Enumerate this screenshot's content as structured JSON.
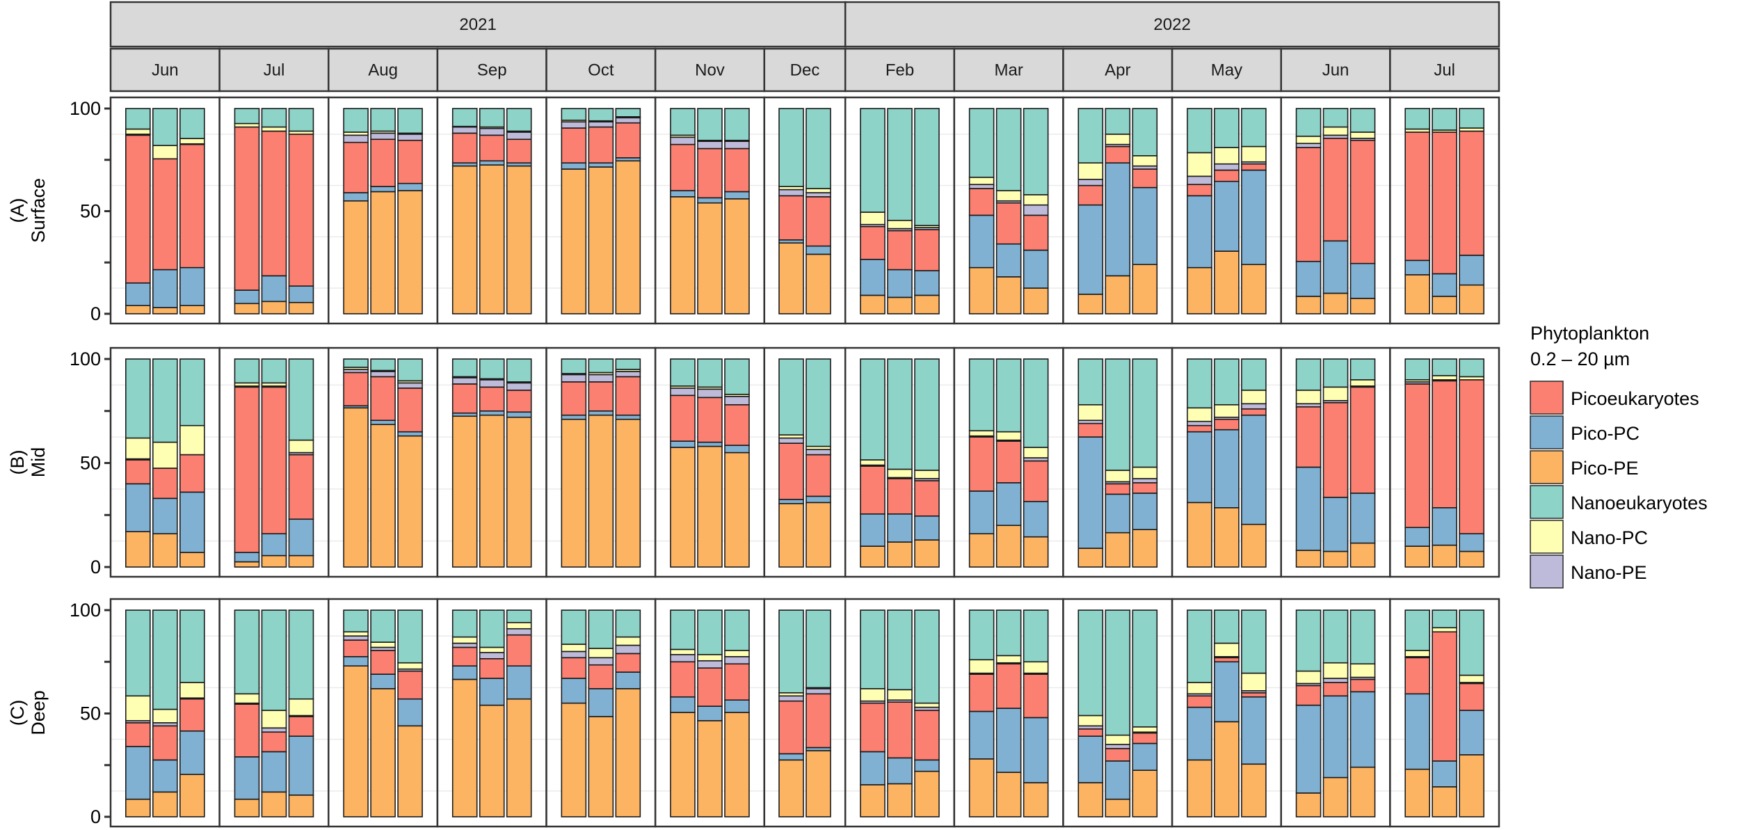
{
  "chart_data": {
    "type": "bar",
    "stacked": true,
    "title": "",
    "xlabel": "",
    "ylabel": "",
    "ylim": [
      0,
      100
    ],
    "yticks": [
      0,
      25,
      50,
      75,
      100
    ],
    "ytick_labels": [
      "0",
      "50",
      "100"
    ],
    "ytick_label_values": [
      0,
      50,
      100
    ],
    "grid": true,
    "legend": {
      "placement": "right",
      "title_lines": [
        "Phytoplankton",
        "0.2 – 20 µm"
      ],
      "items": [
        {
          "name": "Picoeukaryotes",
          "color": "#FB8072"
        },
        {
          "name": "Pico-PC",
          "color": "#80B1D3"
        },
        {
          "name": "Pico-PE",
          "color": "#FDB462"
        },
        {
          "name": "Nanoeukaryotes",
          "color": "#8DD3C7"
        },
        {
          "name": "Nano-PC",
          "color": "#FFFFB3"
        },
        {
          "name": "Nano-PE",
          "color": "#BEBADA"
        }
      ]
    },
    "stack_order": [
      "Pico-PE",
      "Pico-PC",
      "Picoeukaryotes",
      "Nano-PE",
      "Nano-PC",
      "Nanoeukaryotes"
    ],
    "stack_colors": [
      "#FDB462",
      "#80B1D3",
      "#FB8072",
      "#BEBADA",
      "#FFFFB3",
      "#8DD3C7"
    ],
    "years": [
      {
        "label": "2021"
      },
      {
        "label": "2022"
      }
    ],
    "months": [
      {
        "label": "Jun",
        "year": 0
      },
      {
        "label": "Jul",
        "year": 0
      },
      {
        "label": "Aug",
        "year": 0
      },
      {
        "label": "Sep",
        "year": 0
      },
      {
        "label": "Oct",
        "year": 0
      },
      {
        "label": "Nov",
        "year": 0
      },
      {
        "label": "Dec",
        "year": 0
      },
      {
        "label": "Feb",
        "year": 1
      },
      {
        "label": "Mar",
        "year": 1
      },
      {
        "label": "Apr",
        "year": 1
      },
      {
        "label": "May",
        "year": 1
      },
      {
        "label": "Jun",
        "year": 1
      },
      {
        "label": "Jul",
        "year": 1
      }
    ],
    "rows": [
      {
        "letter": "(A)",
        "name": "Surface",
        "bars": [
          [
            [
              4,
              11,
              72,
              0.5,
              2.5,
              10
            ],
            [
              3,
              18.5,
              54,
              0,
              6.5,
              18
            ],
            [
              4,
              18.5,
              60,
              0.3,
              2.6,
              14.6
            ]
          ],
          [
            [
              5,
              6.5,
              79.5,
              0,
              1.7,
              7.3
            ],
            [
              6,
              12.5,
              70.5,
              0,
              2,
              9
            ],
            [
              5.5,
              8,
              74,
              0,
              1.5,
              11
            ]
          ],
          [
            [
              55,
              4,
              24.5,
              3.5,
              1.5,
              11.5
            ],
            [
              59.5,
              2.5,
              23,
              3,
              1,
              11
            ],
            [
              60,
              3.5,
              21,
              3,
              0.5,
              12
            ]
          ],
          [
            [
              72,
              1.5,
              14.5,
              3,
              0.3,
              8.7
            ],
            [
              72.5,
              2,
              12.5,
              3.3,
              0.7,
              9
            ],
            [
              72,
              1.5,
              11.5,
              3.5,
              0.5,
              11
            ]
          ],
          [
            [
              70.5,
              3,
              17,
              3,
              0.8,
              5.7
            ],
            [
              71.5,
              2,
              17.5,
              2.5,
              0.5,
              6
            ],
            [
              74.5,
              1.5,
              17,
              2.5,
              0.5,
              4
            ]
          ],
          [
            [
              57,
              3,
              22.5,
              3.5,
              1,
              13
            ],
            [
              54,
              2.5,
              24,
              3.5,
              0.5,
              15.5
            ],
            [
              56,
              3.5,
              21,
              3.5,
              0.5,
              15.5
            ]
          ],
          [
            [
              34.5,
              1.5,
              21.5,
              3,
              1.5,
              38
            ],
            [
              29,
              4,
              24,
              2,
              2,
              39
            ]
          ],
          [
            [
              9,
              17.5,
              16,
              1,
              6,
              50.5
            ],
            [
              8,
              13.5,
              19,
              1,
              4,
              54.5
            ],
            [
              9,
              12,
              20,
              1,
              1,
              57
            ]
          ],
          [
            [
              22.5,
              25.5,
              13,
              2,
              3.5,
              33.5
            ],
            [
              18,
              16,
              20,
              1,
              5,
              40
            ],
            [
              12.5,
              18.5,
              17,
              5,
              5,
              42
            ]
          ],
          [
            [
              9.5,
              43.5,
              9.5,
              3,
              8,
              26.5
            ],
            [
              18.5,
              55,
              8,
              1,
              5,
              12.5
            ],
            [
              24,
              37.5,
              9,
              1.5,
              5,
              23
            ]
          ],
          [
            [
              22.5,
              35,
              5.5,
              4,
              11.5,
              21.5
            ],
            [
              30.5,
              34,
              5.5,
              3,
              8,
              19
            ],
            [
              24,
              46,
              3,
              1,
              7.5,
              18.5
            ]
          ],
          [
            [
              8.5,
              17,
              55.5,
              2,
              3.5,
              13.5
            ],
            [
              10,
              25.5,
              50,
              1.5,
              4,
              9
            ],
            [
              7.5,
              17,
              60,
              1,
              3,
              11.5
            ]
          ],
          [
            [
              19,
              7,
              62.5,
              0,
              1.5,
              10
            ],
            [
              8.5,
              11,
              69,
              0,
              1,
              10.5
            ],
            [
              14,
              14.5,
              60.5,
              0,
              1.5,
              9.5
            ]
          ]
        ]
      },
      {
        "letter": "(B)",
        "name": "Mid",
        "bars": [
          [
            [
              17,
              23,
              11.5,
              0.5,
              10,
              38
            ],
            [
              16,
              17,
              14.5,
              0,
              12.5,
              40
            ],
            [
              7,
              29,
              18,
              0,
              14,
              32
            ]
          ],
          [
            [
              2.5,
              4.5,
              79.5,
              0.5,
              1.5,
              11.5
            ],
            [
              5.5,
              10.5,
              70.5,
              0.5,
              1.5,
              11.5
            ],
            [
              5.5,
              17.5,
              31,
              1,
              6,
              39
            ]
          ],
          [
            [
              76.5,
              1,
              16,
              1.5,
              1,
              4
            ],
            [
              68.5,
              2,
              21,
              2.5,
              0.5,
              5.5
            ],
            [
              63,
              2,
              21,
              2.5,
              1,
              10.5
            ]
          ],
          [
            [
              72.5,
              1.5,
              14,
              3,
              0.5,
              8.5
            ],
            [
              73,
              2,
              11.5,
              3.5,
              0.5,
              9.5
            ],
            [
              72,
              2.5,
              10.5,
              3.5,
              0.5,
              11
            ]
          ],
          [
            [
              71,
              2,
              16,
              3.5,
              0.5,
              7
            ],
            [
              73,
              2,
              14,
              3.5,
              1,
              6.5
            ],
            [
              71,
              2,
              18.5,
              2.5,
              1,
              5
            ]
          ],
          [
            [
              57.5,
              3,
              22,
              3.5,
              1,
              13
            ],
            [
              58,
              2,
              21.5,
              4,
              1,
              13.5
            ],
            [
              55,
              3.5,
              19.5,
              4,
              1,
              17
            ]
          ],
          [
            [
              30.5,
              2,
              27,
              2.5,
              1.5,
              36.5
            ],
            [
              31,
              3,
              20,
              2.5,
              1.5,
              42
            ]
          ],
          [
            [
              10,
              15.5,
              23,
              0.5,
              2.5,
              48.5
            ],
            [
              12,
              13.5,
              17,
              0.5,
              4,
              53
            ],
            [
              13,
              11.5,
              17,
              1,
              4,
              53.5
            ]
          ],
          [
            [
              16,
              20.5,
              26,
              0.5,
              2.5,
              34.5
            ],
            [
              20,
              20.5,
              20,
              0.5,
              4,
              35
            ],
            [
              14.5,
              17,
              19.5,
              1.5,
              5,
              42.5
            ]
          ],
          [
            [
              9,
              53.5,
              6.5,
              1.5,
              7.5,
              22
            ],
            [
              16.5,
              18.5,
              5,
              1,
              5.5,
              53.5
            ],
            [
              18,
              17.5,
              5,
              2,
              5.5,
              52
            ]
          ],
          [
            [
              31,
              34,
              3,
              2,
              6.5,
              23.5
            ],
            [
              28.5,
              37.5,
              5,
              1,
              6,
              22
            ],
            [
              20.5,
              52.5,
              3,
              2.5,
              6.5,
              15
            ]
          ],
          [
            [
              8,
              40,
              29,
              1.5,
              6.5,
              15
            ],
            [
              7.5,
              26,
              45.5,
              1,
              6.5,
              13.5
            ],
            [
              11.5,
              24,
              51,
              0.5,
              3,
              10
            ]
          ],
          [
            [
              10,
              9,
              69,
              1,
              1,
              10
            ],
            [
              10.5,
              18,
              61,
              0.5,
              2,
              8
            ],
            [
              7.5,
              8.5,
              74,
              0,
              1.5,
              8.5
            ]
          ]
        ]
      },
      {
        "letter": "(C)",
        "name": "Deep",
        "bars": [
          [
            [
              8.5,
              25.5,
              11.5,
              1,
              12,
              41.5
            ],
            [
              12,
              15.5,
              16.5,
              1.5,
              6.5,
              48
            ],
            [
              20.5,
              21,
              15.5,
              0.5,
              7.5,
              35
            ]
          ],
          [
            [
              8.5,
              20.5,
              25.5,
              0.5,
              4.5,
              40.5
            ],
            [
              12,
              19.5,
              9.5,
              2,
              8.5,
              48.5
            ],
            [
              10.5,
              28.5,
              9.5,
              0.5,
              8,
              43
            ]
          ],
          [
            [
              73,
              4.5,
              8,
              2,
              2,
              10.5
            ],
            [
              62,
              7,
              11.5,
              1.5,
              2.5,
              15.5
            ],
            [
              44,
              13,
              13.5,
              1,
              3,
              25.5
            ]
          ],
          [
            [
              66.5,
              6.5,
              9,
              2,
              3,
              13
            ],
            [
              54,
              13,
              9.5,
              3,
              2.5,
              18
            ],
            [
              57,
              16,
              15,
              3,
              3,
              6
            ]
          ],
          [
            [
              55,
              12,
              10,
              3,
              3.5,
              16.5
            ],
            [
              48.5,
              13.5,
              11.5,
              3.5,
              4.5,
              18.5
            ],
            [
              62,
              8,
              9,
              4,
              4,
              13
            ]
          ],
          [
            [
              50.5,
              7.5,
              17,
              3.5,
              2.5,
              19
            ],
            [
              46.5,
              7,
              18.5,
              3.5,
              3,
              21.5
            ],
            [
              50.5,
              6,
              17.5,
              3.5,
              3,
              19.5
            ]
          ],
          [
            [
              27.5,
              3,
              25.5,
              2.5,
              1.5,
              40
            ],
            [
              32,
              1.5,
              26,
              2.5,
              0.5,
              37.5
            ]
          ],
          [
            [
              15.5,
              16,
              23.5,
              1,
              6,
              38
            ],
            [
              16,
              12.5,
              27,
              1,
              5,
              38.5
            ],
            [
              22,
              5.5,
              24,
              1.5,
              2,
              45
            ]
          ],
          [
            [
              28,
              23,
              18,
              0.5,
              6.5,
              24
            ],
            [
              21.5,
              31,
              21.5,
              0.5,
              3.5,
              22
            ],
            [
              16.5,
              31.5,
              21,
              0.5,
              5.5,
              25
            ]
          ],
          [
            [
              16.5,
              22.5,
              3.5,
              1.5,
              5,
              51
            ],
            [
              8.5,
              18.5,
              6,
              2,
              4.5,
              60.5
            ],
            [
              22.5,
              13,
              5,
              0.5,
              2.5,
              56.5
            ]
          ],
          [
            [
              27.5,
              25.5,
              5.5,
              1,
              5.5,
              35
            ],
            [
              46,
              29,
              2,
              0.5,
              6.5,
              16
            ],
            [
              25.5,
              32.5,
              2,
              1,
              8.5,
              30.5
            ]
          ],
          [
            [
              11.5,
              42.5,
              9.5,
              1,
              6,
              29.5
            ],
            [
              19,
              39.5,
              6.5,
              2,
              7.5,
              25.5
            ],
            [
              24,
              36.5,
              6,
              1,
              6.5,
              26
            ]
          ],
          [
            [
              23,
              36.5,
              17.5,
              0.5,
              3,
              19.5
            ],
            [
              14.5,
              12.5,
              62.5,
              0,
              2,
              8.5
            ],
            [
              30,
              21.5,
              13,
              0.5,
              3.5,
              31.5
            ]
          ]
        ]
      }
    ]
  }
}
